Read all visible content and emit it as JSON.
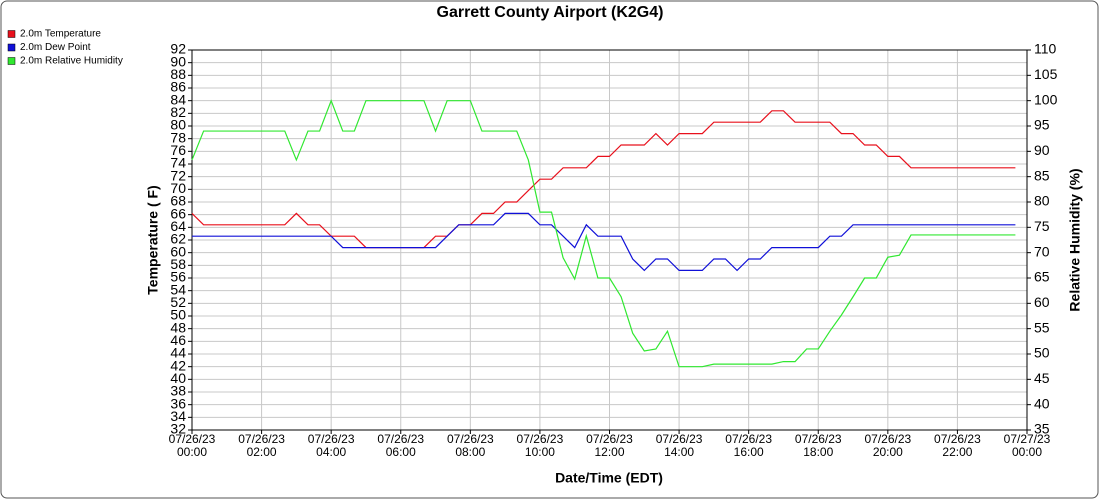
{
  "chart_data": {
    "type": "line",
    "title": "Garrett County Airport (K2G4)",
    "x_label": "Date/Time (EDT)",
    "y_label": "Temperature ( F)",
    "y2_label": "Relative Humidity (%)",
    "grid": true,
    "legend": "top-left",
    "x": [
      0,
      20,
      40,
      60,
      80,
      100,
      120,
      140,
      160,
      180,
      200,
      220,
      240,
      260,
      280,
      300,
      320,
      340,
      360,
      380,
      400,
      420,
      440,
      460,
      480,
      500,
      520,
      540,
      560,
      580,
      600,
      620,
      640,
      660,
      680,
      700,
      720,
      740,
      760,
      780,
      800,
      820,
      840,
      860,
      880,
      900,
      920,
      940,
      960,
      980,
      1000,
      1020,
      1040,
      1060,
      1080,
      1100,
      1120,
      1140,
      1160,
      1180,
      1200,
      1220,
      1240,
      1260,
      1280,
      1300,
      1320,
      1340,
      1360,
      1380,
      1400,
      1420
    ],
    "xlim": [
      0,
      1440
    ],
    "xticks": [
      {
        "value": 0,
        "label": "07/26/23\n00:00"
      },
      {
        "value": 120,
        "label": "07/26/23\n02:00"
      },
      {
        "value": 240,
        "label": "07/26/23\n04:00"
      },
      {
        "value": 360,
        "label": "07/26/23\n06:00"
      },
      {
        "value": 480,
        "label": "07/26/23\n08:00"
      },
      {
        "value": 600,
        "label": "07/26/23\n10:00"
      },
      {
        "value": 720,
        "label": "07/26/23\n12:00"
      },
      {
        "value": 840,
        "label": "07/26/23\n14:00"
      },
      {
        "value": 960,
        "label": "07/26/23\n16:00"
      },
      {
        "value": 1080,
        "label": "07/26/23\n18:00"
      },
      {
        "value": 1200,
        "label": "07/26/23\n20:00"
      },
      {
        "value": 1320,
        "label": "07/26/23\n22:00"
      },
      {
        "value": 1440,
        "label": "07/27/23\n00:00"
      }
    ],
    "ylim": [
      32,
      92
    ],
    "yticks": [
      32,
      34,
      36,
      38,
      40,
      42,
      44,
      46,
      48,
      50,
      52,
      54,
      56,
      58,
      60,
      62,
      64,
      66,
      68,
      70,
      72,
      74,
      76,
      78,
      80,
      82,
      84,
      86,
      88,
      90,
      92
    ],
    "y2lim": [
      35,
      110
    ],
    "y2ticks": [
      35,
      40,
      45,
      50,
      55,
      60,
      65,
      70,
      75,
      80,
      85,
      90,
      95,
      100,
      105,
      110
    ],
    "series": [
      {
        "name": "2.0m Temperature",
        "color": "#e8101c",
        "values": [
          66.2,
          64.4,
          64.4,
          64.4,
          64.4,
          64.4,
          64.4,
          64.4,
          64.4,
          66.2,
          64.4,
          64.4,
          62.6,
          62.6,
          62.6,
          60.8,
          60.8,
          60.8,
          60.8,
          60.8,
          60.8,
          62.6,
          62.6,
          64.4,
          64.4,
          66.2,
          66.2,
          68,
          68,
          69.8,
          71.6,
          71.6,
          73.4,
          73.4,
          73.4,
          75.2,
          75.2,
          77,
          77,
          77,
          78.8,
          77,
          78.8,
          78.8,
          78.8,
          80.6,
          80.6,
          80.6,
          80.6,
          80.6,
          82.4,
          82.4,
          80.6,
          80.6,
          80.6,
          80.6,
          78.8,
          78.8,
          77,
          77,
          75.2,
          75.2,
          73.4,
          73.4,
          73.4,
          73.4,
          73.4,
          73.4,
          73.4,
          73.4,
          73.4,
          73.4
        ]
      },
      {
        "name": "2.0m Dew Point",
        "color": "#1010d8",
        "values": [
          62.6,
          62.6,
          62.6,
          62.6,
          62.6,
          62.6,
          62.6,
          62.6,
          62.6,
          62.6,
          62.6,
          62.6,
          62.6,
          60.8,
          60.8,
          60.8,
          60.8,
          60.8,
          60.8,
          60.8,
          60.8,
          60.8,
          62.6,
          64.4,
          64.4,
          64.4,
          64.4,
          66.2,
          66.2,
          66.2,
          64.4,
          64.4,
          62.6,
          60.8,
          64.4,
          62.6,
          62.6,
          62.6,
          59,
          57.2,
          59,
          59,
          57.2,
          57.2,
          57.2,
          59,
          59,
          57.2,
          59,
          59,
          60.8,
          60.8,
          60.8,
          60.8,
          60.8,
          62.6,
          62.6,
          64.4,
          64.4,
          64.4,
          64.4,
          64.4,
          64.4,
          64.4,
          64.4,
          64.4,
          64.4,
          64.4,
          64.4,
          64.4,
          64.4,
          64.4
        ]
      },
      {
        "name": "2.0m Relative Humidity",
        "color": "#30e830",
        "axis": "y2",
        "values": [
          88.3,
          94,
          94,
          94,
          94,
          94,
          94,
          94,
          94,
          88.3,
          94,
          94,
          100,
          94,
          94,
          100,
          100,
          100,
          100,
          100,
          100,
          94,
          100,
          100,
          100,
          94,
          94,
          94,
          94,
          88.3,
          78,
          78,
          69,
          64.8,
          73.3,
          65,
          65,
          61.3,
          54.1,
          50.6,
          51,
          54.5,
          47.5,
          47.5,
          47.5,
          48,
          48,
          48,
          48,
          48,
          48,
          48.5,
          48.5,
          51,
          51,
          54.5,
          57.7,
          61.3,
          65,
          65,
          69.1,
          69.5,
          73.5,
          73.5,
          73.5,
          73.5,
          73.5,
          73.5,
          73.5,
          73.5,
          73.5,
          73.5
        ]
      }
    ]
  }
}
